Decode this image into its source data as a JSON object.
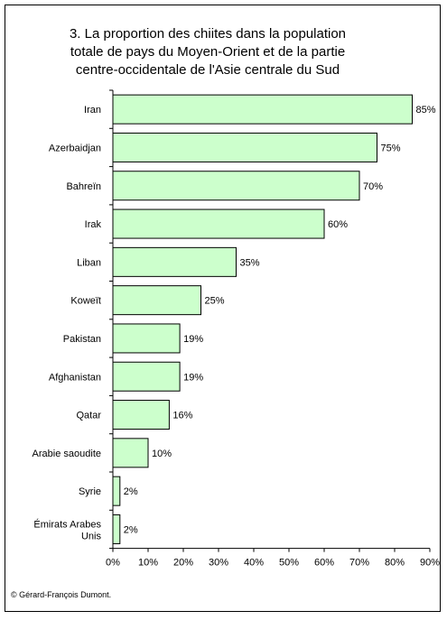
{
  "title": {
    "line1": "3. La proportion des chiites dans la population",
    "line2": "totale de pays du Moyen-Orient et de la partie",
    "line3": "centre-occidentale de l'Asie centrale du Sud"
  },
  "credit": "© Gérard-François Dumont.",
  "colors": {
    "bar_fill": "#ccffcc",
    "bar_stroke": "#000000"
  },
  "chart_data": {
    "type": "bar",
    "orientation": "horizontal",
    "title": "3. La proportion des chiites dans la population totale de pays du Moyen-Orient et de la partie centre-occidentale de l'Asie centrale du Sud",
    "categories": [
      "Iran",
      "Azerbaidjan",
      "Bahreïn",
      "Irak",
      "Liban",
      "Koweït",
      "Pakistan",
      "Afghanistan",
      "Qatar",
      "Arabie saoudite",
      "Syrie",
      "Émirats Arabes Unis"
    ],
    "values": [
      85,
      75,
      70,
      60,
      35,
      25,
      19,
      19,
      16,
      10,
      2,
      2
    ],
    "value_labels": [
      "85%",
      "75%",
      "70%",
      "60%",
      "35%",
      "25%",
      "19%",
      "19%",
      "16%",
      "10%",
      "2%",
      "2%"
    ],
    "xlim": [
      0,
      90
    ],
    "xticks": [
      "0%",
      "10%",
      "20%",
      "30%",
      "40%",
      "50%",
      "60%",
      "70%",
      "80%",
      "90%"
    ],
    "xlabel": "",
    "ylabel": "",
    "grid": false,
    "legend": "none"
  }
}
